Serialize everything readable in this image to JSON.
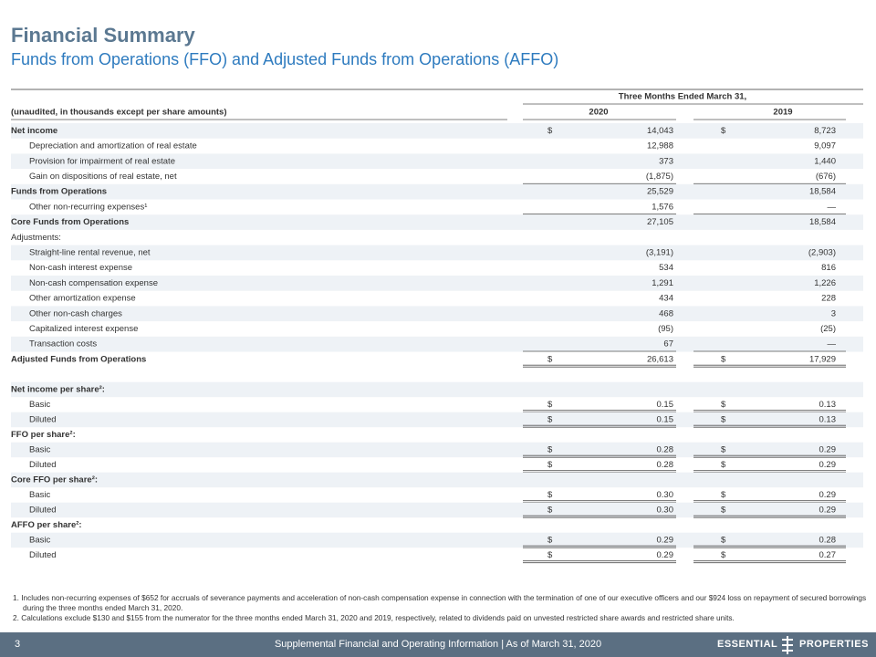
{
  "header": {
    "title": "Financial Summary",
    "subtitle": "Funds from Operations (FFO) and Adjusted Funds from Operations (AFFO)"
  },
  "table": {
    "period_header": "Three Months Ended March 31,",
    "label_header": "(unaudited, in thousands except per share amounts)",
    "columns": [
      "2020",
      "2019"
    ],
    "rows": [
      {
        "label": "Net income",
        "cells": [
          [
            "$",
            "14,043"
          ],
          [
            "$",
            "8,723"
          ]
        ]
      },
      {
        "label": "Depreciation and amortization of real estate",
        "cells": [
          [
            "12,988"
          ],
          [
            "9,097"
          ]
        ]
      },
      {
        "label": "Provision for impairment of real estate",
        "cells": [
          [
            "373"
          ],
          [
            "1,440"
          ]
        ]
      },
      {
        "label": "Gain on dispositions of real estate, net",
        "cells": [
          [
            "(1,875)"
          ],
          [
            "(676)"
          ]
        ]
      },
      {
        "label": "Funds from Operations",
        "cells": [
          [
            "25,529"
          ],
          [
            "18,584"
          ]
        ]
      },
      {
        "label": "Other non-recurring expenses¹",
        "cells": [
          [
            "1,576"
          ],
          [
            "—"
          ]
        ]
      },
      {
        "label": "Core Funds from Operations",
        "cells": [
          [
            "27,105"
          ],
          [
            "18,584"
          ]
        ]
      },
      {
        "label": "Adjustments:"
      },
      {
        "label": "Straight-line rental revenue, net",
        "cells": [
          [
            "(3,191)"
          ],
          [
            "(2,903)"
          ]
        ]
      },
      {
        "label": "Non-cash interest expense",
        "cells": [
          [
            "534"
          ],
          [
            "816"
          ]
        ]
      },
      {
        "label": "Non-cash compensation expense",
        "cells": [
          [
            "1,291"
          ],
          [
            "1,226"
          ]
        ]
      },
      {
        "label": "Other amortization expense",
        "cells": [
          [
            "434"
          ],
          [
            "228"
          ]
        ]
      },
      {
        "label": "Other non-cash charges",
        "cells": [
          [
            "468"
          ],
          [
            "3"
          ]
        ]
      },
      {
        "label": "Capitalized interest expense",
        "cells": [
          [
            "(95)"
          ],
          [
            "(25)"
          ]
        ]
      },
      {
        "label": "Transaction costs",
        "cells": [
          [
            "67"
          ],
          [
            "—"
          ]
        ]
      },
      {
        "label": "Adjusted Funds from Operations",
        "cells": [
          [
            "$",
            "26,613"
          ],
          [
            "$",
            "17,929"
          ]
        ]
      },
      {
        "label": "Net income per share²:"
      },
      {
        "label": "Basic",
        "cells": [
          [
            "$",
            "0.15"
          ],
          [
            "$",
            "0.13"
          ]
        ]
      },
      {
        "label": "Diluted",
        "cells": [
          [
            "$",
            "0.15"
          ],
          [
            "$",
            "0.13"
          ]
        ]
      },
      {
        "label": "FFO per share²:"
      },
      {
        "label": "Basic",
        "cells": [
          [
            "$",
            "0.28"
          ],
          [
            "$",
            "0.29"
          ]
        ]
      },
      {
        "label": "Diluted",
        "cells": [
          [
            "$",
            "0.28"
          ],
          [
            "$",
            "0.29"
          ]
        ]
      },
      {
        "label": "Core FFO per share²:"
      },
      {
        "label": "Basic",
        "cells": [
          [
            "$",
            "0.30"
          ],
          [
            "$",
            "0.29"
          ]
        ]
      },
      {
        "label": "Diluted",
        "cells": [
          [
            "$",
            "0.30"
          ],
          [
            "$",
            "0.29"
          ]
        ]
      },
      {
        "label": "AFFO per share²:"
      },
      {
        "label": "Basic",
        "cells": [
          [
            "$",
            "0.29"
          ],
          [
            "$",
            "0.28"
          ]
        ]
      },
      {
        "label": "Diluted",
        "cells": [
          [
            "$",
            "0.29"
          ],
          [
            "$",
            "0.27"
          ]
        ]
      }
    ]
  },
  "footnotes": [
    "1.  Includes non-recurring expenses of $652 for accruals of severance payments and acceleration of non-cash compensation expense in connection with the termination of one of our executive officers and our $924 loss on repayment of secured borrowings during the three months ended March 31, 2020.",
    "2.  Calculations exclude $130 and $155 from the numerator for the three months ended March 31, 2020 and 2019, respectively, related to dividends paid on unvested restricted share awards and restricted share units."
  ],
  "footer": {
    "page": "3",
    "text": "Supplemental Financial and Operating Information | As of March 31, 2020",
    "logo_left": "ESSENTIAL",
    "logo_right": "PROPERTIES"
  }
}
